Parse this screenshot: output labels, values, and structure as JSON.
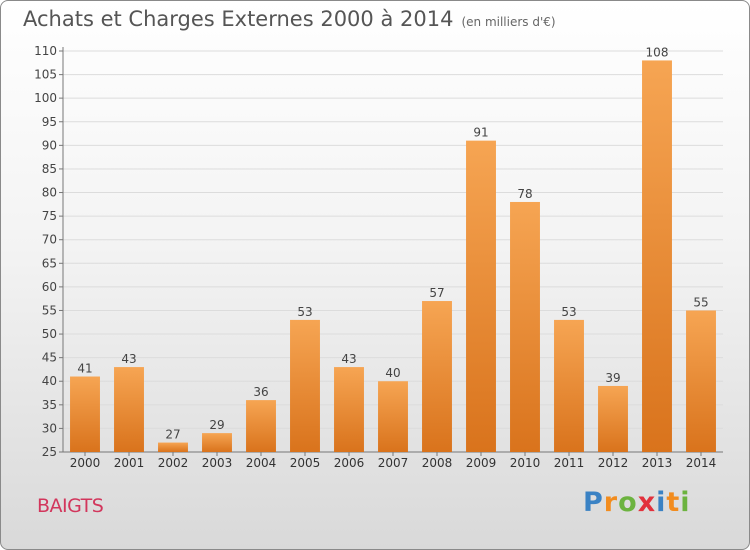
{
  "header": {
    "title": "Achats et Charges Externes 2000 à 2014",
    "subtitle": "(en milliers d'€)"
  },
  "footer": {
    "place": "BAIGTS",
    "brand": {
      "letters": [
        "P",
        "r",
        "o",
        "x",
        "i",
        "t",
        "i"
      ],
      "colors": [
        "#3a82c4",
        "#f28c1e",
        "#6cb33f",
        "#e2313c",
        "#3a82c4",
        "#f28c1e",
        "#6cb33f"
      ]
    }
  },
  "chart_data": {
    "type": "bar",
    "title": "Achats et Charges Externes 2000 à 2014",
    "subtitle": "(en milliers d'€)",
    "categories": [
      "2000",
      "2001",
      "2002",
      "2003",
      "2004",
      "2005",
      "2006",
      "2007",
      "2008",
      "2009",
      "2010",
      "2011",
      "2012",
      "2013",
      "2014"
    ],
    "values": [
      41,
      43,
      27,
      29,
      36,
      53,
      43,
      40,
      57,
      91,
      78,
      53,
      39,
      108,
      55
    ],
    "ylim": [
      25,
      110
    ],
    "yticks": [
      25,
      30,
      35,
      40,
      45,
      50,
      55,
      60,
      65,
      70,
      75,
      80,
      85,
      90,
      95,
      100,
      105,
      110
    ],
    "grid": true,
    "bar_color": "#f0943a",
    "data_labels": true
  }
}
